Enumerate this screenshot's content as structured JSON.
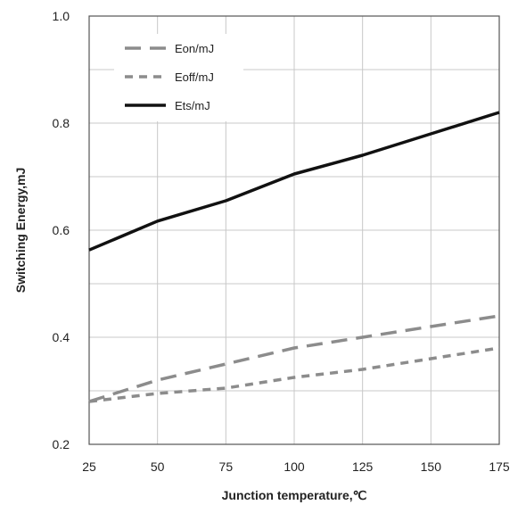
{
  "chart_data": {
    "type": "line",
    "xlabel": "Junction temperature,℃",
    "ylabel": "Switching Energy,mJ",
    "xlim": [
      25,
      175
    ],
    "ylim": [
      0.2,
      1.0
    ],
    "x_ticks": [
      "25",
      "50",
      "75",
      "100",
      "125",
      "150",
      "175"
    ],
    "y_ticks": [
      "0.2",
      "0.4",
      "0.6",
      "0.8",
      "1.0"
    ],
    "grid": true,
    "legend_position": "top-left",
    "series": [
      {
        "name": "Eon/mJ",
        "style": "long-dash",
        "color": "#8c8c8c",
        "x": [
          25,
          50,
          75,
          100,
          125,
          150,
          175
        ],
        "y": [
          0.28,
          0.32,
          0.35,
          0.38,
          0.4,
          0.42,
          0.44
        ]
      },
      {
        "name": "Eoff/mJ",
        "style": "short-dash",
        "color": "#8c8c8c",
        "x": [
          25,
          50,
          75,
          100,
          125,
          150,
          175
        ],
        "y": [
          0.28,
          0.295,
          0.305,
          0.325,
          0.34,
          0.36,
          0.38
        ]
      },
      {
        "name": "Ets/mJ",
        "style": "solid",
        "color": "#111111",
        "x": [
          25,
          50,
          75,
          100,
          125,
          150,
          175
        ],
        "y": [
          0.563,
          0.617,
          0.655,
          0.705,
          0.74,
          0.78,
          0.82
        ]
      }
    ]
  }
}
